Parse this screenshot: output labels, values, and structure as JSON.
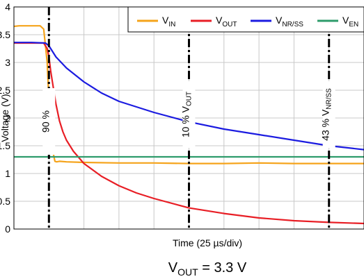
{
  "chart_data": {
    "type": "line",
    "xlabel": "Time (25 µs/div)",
    "ylabel": "Voltage (V)",
    "ylim": [
      0,
      4
    ],
    "y_ticks": [
      "0",
      "0.5",
      "1",
      "1.5",
      "2",
      "2.5",
      "3",
      "3.5",
      "4"
    ],
    "x_divisions": 10,
    "grid": true,
    "legend_position": "top-right",
    "series": [
      {
        "name": "V_IN",
        "legend_main": "V",
        "legend_sub": "IN",
        "color": "#F5A31A",
        "x": [
          0,
          0.15,
          0.5,
          0.75,
          0.85,
          0.95,
          1.0,
          1.06,
          1.12,
          1.17,
          1.22,
          1.3,
          1.5,
          2,
          3,
          4,
          5,
          6,
          7,
          8,
          9,
          10
        ],
        "y": [
          3.65,
          3.66,
          3.66,
          3.66,
          3.6,
          3.0,
          2.3,
          1.75,
          1.38,
          1.22,
          1.21,
          1.22,
          1.21,
          1.2,
          1.19,
          1.19,
          1.18,
          1.18,
          1.19,
          1.18,
          1.18,
          1.18
        ]
      },
      {
        "name": "V_OUT",
        "legend_main": "V",
        "legend_sub": "OUT",
        "color": "#E81E25",
        "x": [
          0,
          0.5,
          0.85,
          0.95,
          1.0,
          1.05,
          1.1,
          1.2,
          1.3,
          1.4,
          1.5,
          1.7,
          2,
          2.5,
          3,
          3.5,
          4,
          5,
          6,
          7,
          8,
          9,
          10
        ],
        "y": [
          3.35,
          3.35,
          3.35,
          3.25,
          3.1,
          2.85,
          2.65,
          2.25,
          1.95,
          1.75,
          1.6,
          1.4,
          1.18,
          0.95,
          0.78,
          0.65,
          0.55,
          0.38,
          0.28,
          0.2,
          0.15,
          0.12,
          0.1
        ]
      },
      {
        "name": "V_NR/SS",
        "legend_main": "V",
        "legend_sub": "NR/SS",
        "color": "#1B1BE0",
        "x": [
          0,
          0.5,
          0.9,
          1.0,
          1.2,
          1.5,
          2,
          2.5,
          3,
          4,
          5,
          6,
          7,
          8,
          9,
          10
        ],
        "y": [
          3.36,
          3.36,
          3.35,
          3.3,
          3.1,
          2.9,
          2.65,
          2.45,
          2.3,
          2.1,
          1.93,
          1.8,
          1.7,
          1.6,
          1.5,
          1.43
        ]
      },
      {
        "name": "V_EN",
        "legend_main": "V",
        "legend_sub": "EN",
        "color": "#2E9B6B",
        "x": [
          0,
          10
        ],
        "y": [
          1.3,
          1.3
        ]
      }
    ],
    "markers": [
      {
        "x": 1.0,
        "label_main": "90 %",
        "label_sub": ""
      },
      {
        "x": 5.0,
        "label_main": "10 % V",
        "label_sub": "OUT"
      },
      {
        "x": 9.0,
        "label_main": "43 % V",
        "label_sub": "NR/SS"
      }
    ]
  },
  "caption": {
    "main": "V",
    "sub": "OUT",
    "rest": " = 3.3 V"
  }
}
